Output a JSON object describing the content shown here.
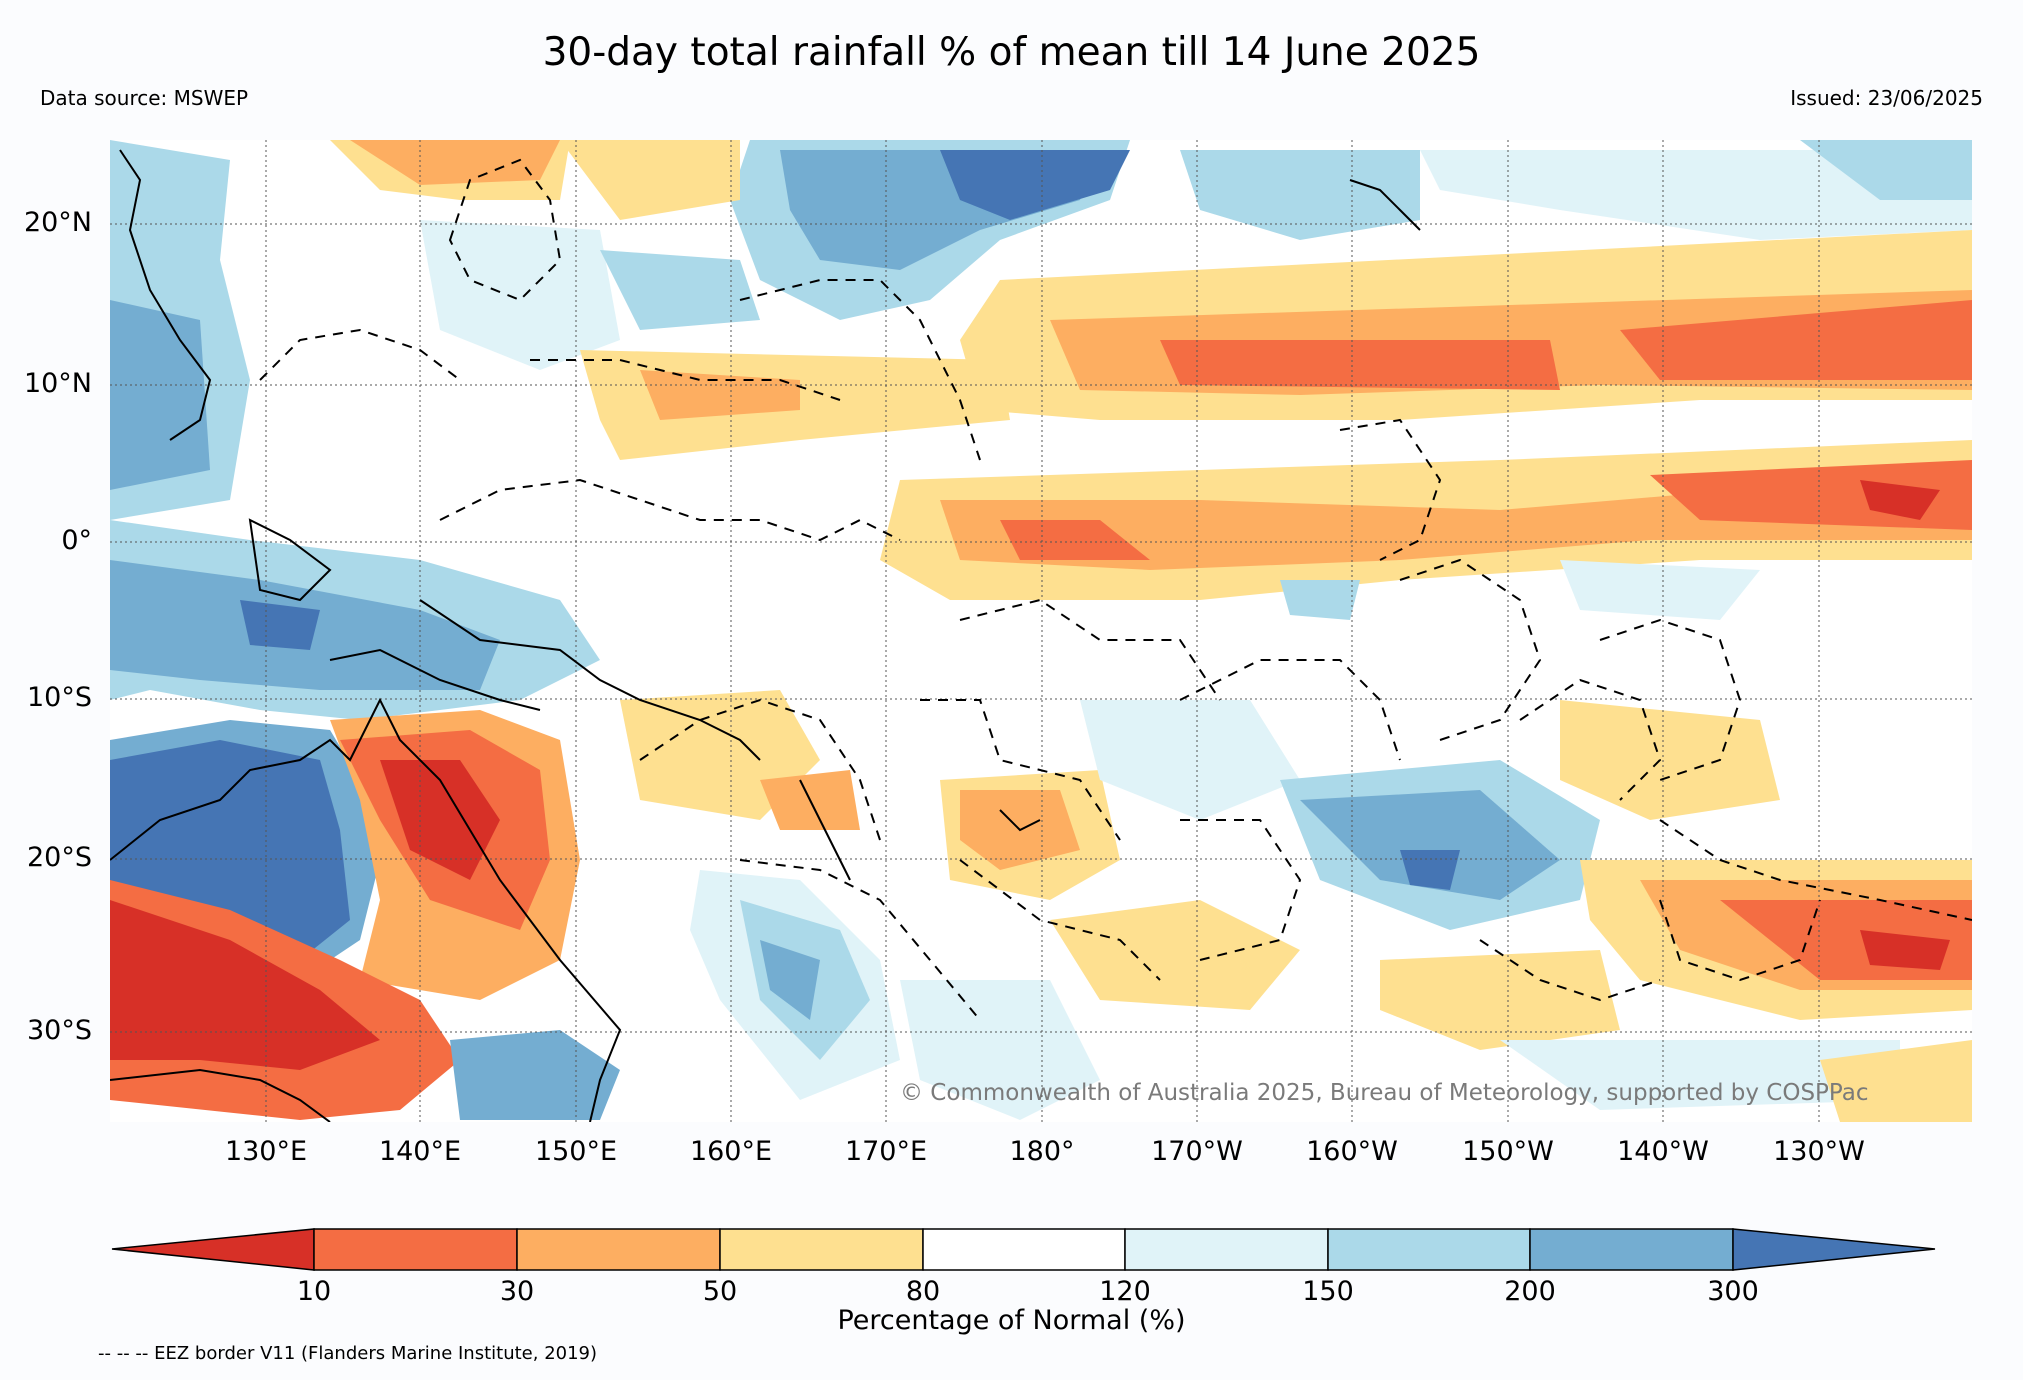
{
  "header": {
    "title": "30-day total rainfall % of mean till 14 June 2025",
    "source": "Data source: MSWEP",
    "issued": "Issued: 23/06/2025"
  },
  "map": {
    "lat_labels": [
      "20°N",
      "10°N",
      "0°",
      "10°S",
      "20°S",
      "30°S"
    ],
    "lon_labels": [
      "130°E",
      "140°E",
      "150°E",
      "160°E",
      "170°E",
      "180°",
      "170°W",
      "160°W",
      "150°W",
      "140°W",
      "130°W"
    ],
    "copyright": "© Commonwealth of Australia 2025, Bureau of Meteorology, supported by COSPPac",
    "extent": {
      "lon_min": 120,
      "lon_max": 240,
      "lat_min": -36,
      "lat_max": 25
    }
  },
  "colorbar": {
    "title": "Percentage of Normal (%)",
    "ticks": [
      "10",
      "30",
      "50",
      "80",
      "120",
      "150",
      "200",
      "300"
    ],
    "colors": [
      "#d73027",
      "#f46d43",
      "#fdae61",
      "#fee090",
      "#ffffff",
      "#e0f3f8",
      "#abd9e9",
      "#74add1",
      "#4575b4"
    ]
  },
  "legend_note": "-- -- -- EEZ border V11 (Flanders Marine Institute, 2019)"
}
